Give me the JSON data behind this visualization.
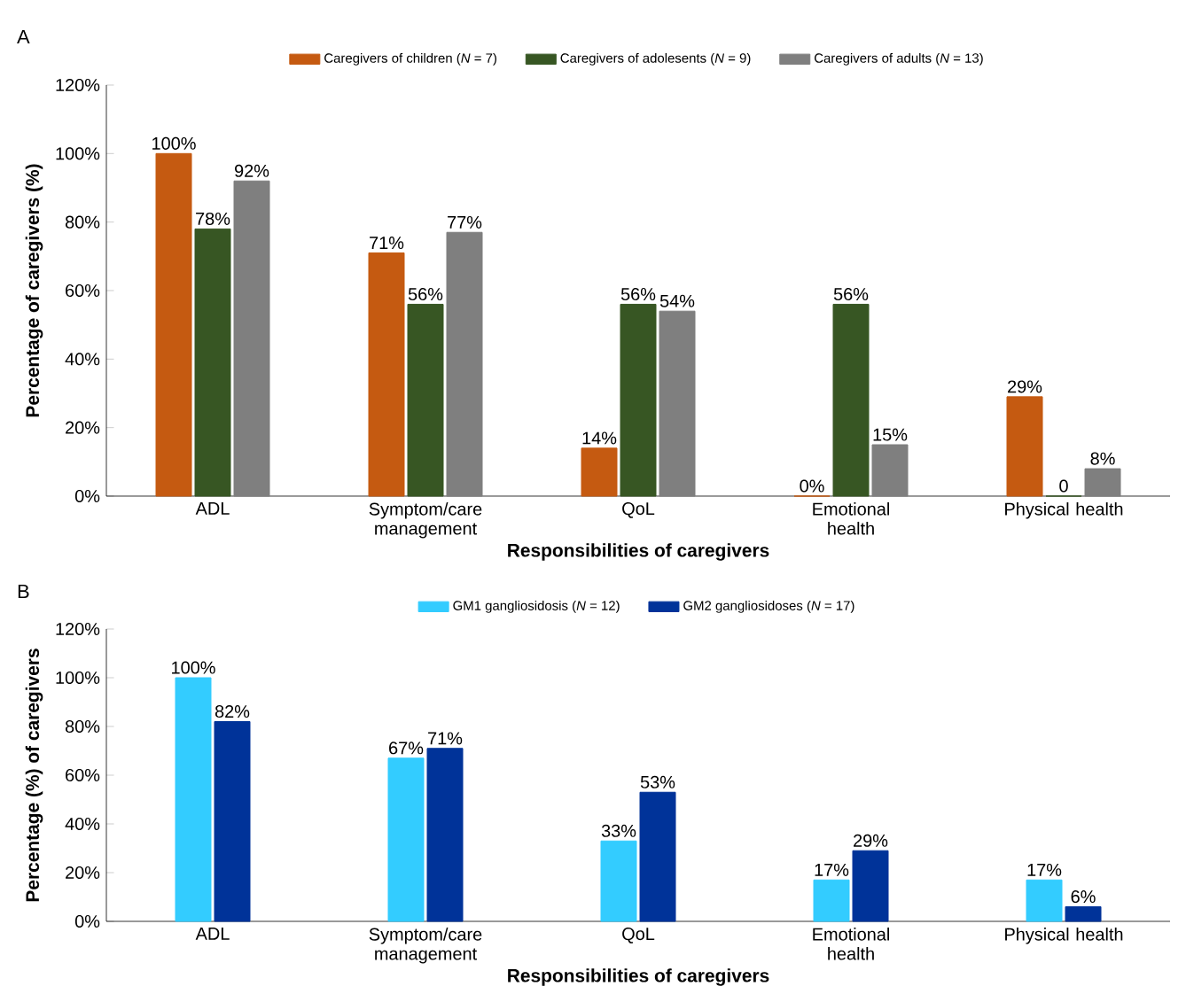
{
  "chart_data": [
    {
      "type": "bar",
      "title": "A",
      "xlabel": "Responsibilities of caregivers",
      "ylabel": "Percentage of caregivers (%)",
      "categories": [
        "ADL",
        "Symptom/care management",
        "QoL",
        "Emotional health",
        "Physical health"
      ],
      "ylim": [
        0,
        120
      ],
      "yticks": [
        {
          "value": 0,
          "label": "0%"
        },
        {
          "value": 20,
          "label": "20%"
        },
        {
          "value": 40,
          "label": "40%"
        },
        {
          "value": 60,
          "label": "60%"
        },
        {
          "value": 80,
          "label": "80%"
        },
        {
          "value": 100,
          "label": "100%"
        },
        {
          "value": 120,
          "label": "120%"
        }
      ],
      "legend": "top",
      "series": [
        {
          "name": "Caregivers of children (*N* = 7)",
          "color": "#c55a11",
          "values": [
            100,
            71,
            14,
            0,
            29
          ],
          "value_labels": [
            "100%",
            "71%",
            "14%",
            "0%",
            "29%"
          ]
        },
        {
          "name": "Caregivers of adolesents (*N* = 9)",
          "color": "#375623",
          "values": [
            78,
            56,
            56,
            56,
            0
          ],
          "value_labels": [
            "78%",
            "56%",
            "56%",
            "56%",
            "0"
          ]
        },
        {
          "name": "Caregivers of adults (*N* = 13)",
          "color": "#7f7f7f",
          "values": [
            92,
            77,
            54,
            15,
            8
          ],
          "value_labels": [
            "92%",
            "77%",
            "54%",
            "15%",
            "8%"
          ]
        }
      ]
    },
    {
      "type": "bar",
      "title": "B",
      "xlabel": "Responsibilities of caregivers",
      "ylabel": "Percentage (%) of caregivers",
      "categories": [
        "ADL",
        "Symptom/care management",
        "QoL",
        "Emotional health",
        "Physical health"
      ],
      "ylim": [
        0,
        120
      ],
      "yticks": [
        {
          "value": 0,
          "label": "0%"
        },
        {
          "value": 20,
          "label": "20%"
        },
        {
          "value": 40,
          "label": "40%"
        },
        {
          "value": 60,
          "label": "60%"
        },
        {
          "value": 80,
          "label": "80%"
        },
        {
          "value": 100,
          "label": "100%"
        },
        {
          "value": 120,
          "label": "120%"
        }
      ],
      "legend": "top",
      "series": [
        {
          "name": "GM1 gangliosidosis (*N* = 12)",
          "color": "#33ccff",
          "values": [
            100,
            67,
            33,
            17,
            17
          ],
          "value_labels": [
            "100%",
            "67%",
            "33%",
            "17%",
            "17%"
          ]
        },
        {
          "name": "GM2 gangliosidoses (*N* = 17)",
          "color": "#003399",
          "values": [
            82,
            71,
            53,
            29,
            6
          ],
          "value_labels": [
            "82%",
            "71%",
            "53%",
            "29%",
            "6%"
          ]
        }
      ]
    }
  ]
}
